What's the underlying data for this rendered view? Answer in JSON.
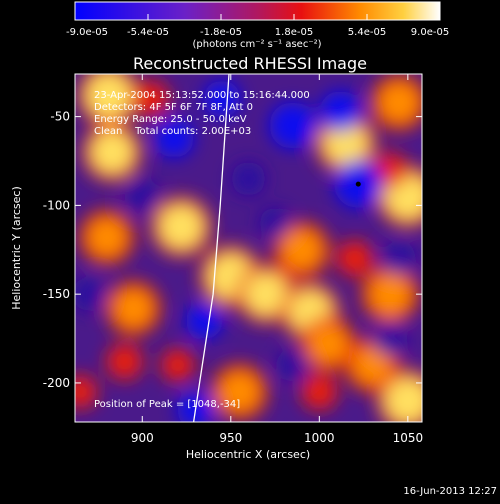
{
  "chart_data": {
    "type": "heatmap",
    "title": "Reconstructed RHESSI Image",
    "xlabel": "Heliocentric X (arcsec)",
    "ylabel": "Heliocentric Y (arcsec)",
    "xlim": [
      862,
      1058
    ],
    "ylim": [
      -222,
      -26
    ],
    "x_ticks": [
      900,
      950,
      1000,
      1050
    ],
    "y_ticks": [
      -50,
      -100,
      -150,
      -200
    ],
    "colorbar": {
      "min": -9e-05,
      "max": 9e-05,
      "tick_labels": [
        "-9.0e-05",
        "-5.4e-05",
        "-1.8e-05",
        "1.8e-05",
        "5.4e-05",
        "9.0e-05"
      ],
      "units_label": "(photons cm⁻² s⁻¹ asec⁻²)",
      "colors": [
        "#0000ff",
        "#5a1fd0",
        "#9a1f99",
        "#e01818",
        "#ff7a00",
        "#ffd040",
        "#ffffff"
      ]
    },
    "annotations": [
      "23-Apr-2004 15:13:52.000 to 15:16:44.000",
      "Detectors: 4F 5F 6F 7F 8F, Att 0",
      "Energy Range: 25.0 - 50.0 keV",
      "Clean    Total counts: 2.00E+03"
    ],
    "peak_label": "Position of Peak = [1048,-34]",
    "peak": [
      1048,
      -34
    ],
    "limb_points": [
      [
        929,
        -222
      ],
      [
        940,
        -150
      ],
      [
        944,
        -100
      ],
      [
        949,
        -26
      ]
    ],
    "blobs": [
      {
        "x": 881,
        "y": -38,
        "v": 0.95
      },
      {
        "x": 905,
        "y": -40,
        "v": 0.6
      },
      {
        "x": 1045,
        "y": -42,
        "v": 0.75
      },
      {
        "x": 1015,
        "y": -65,
        "v": 0.9
      },
      {
        "x": 883,
        "y": -70,
        "v": 0.85
      },
      {
        "x": 1050,
        "y": -95,
        "v": 0.95
      },
      {
        "x": 1040,
        "y": -80,
        "v": 0.55
      },
      {
        "x": 880,
        "y": -118,
        "v": 0.7
      },
      {
        "x": 922,
        "y": -112,
        "v": 0.9
      },
      {
        "x": 990,
        "y": -125,
        "v": 0.75
      },
      {
        "x": 1020,
        "y": -130,
        "v": 0.6
      },
      {
        "x": 950,
        "y": -140,
        "v": 0.95
      },
      {
        "x": 970,
        "y": -150,
        "v": 0.85
      },
      {
        "x": 895,
        "y": -158,
        "v": 0.7
      },
      {
        "x": 995,
        "y": -160,
        "v": 0.85
      },
      {
        "x": 1040,
        "y": -150,
        "v": 0.8
      },
      {
        "x": 1005,
        "y": -178,
        "v": 0.7
      },
      {
        "x": 920,
        "y": -190,
        "v": 0.5
      },
      {
        "x": 890,
        "y": -188,
        "v": 0.6
      },
      {
        "x": 865,
        "y": -205,
        "v": 0.5
      },
      {
        "x": 1050,
        "y": -210,
        "v": 0.95
      },
      {
        "x": 955,
        "y": -205,
        "v": 0.75
      },
      {
        "x": 1000,
        "y": -205,
        "v": 0.6
      },
      {
        "x": 1030,
        "y": -190,
        "v": 0.7
      },
      {
        "x": 1012,
        "y": -47,
        "v": -0.75
      },
      {
        "x": 985,
        "y": -55,
        "v": -0.95
      },
      {
        "x": 945,
        "y": -40,
        "v": -0.6
      },
      {
        "x": 918,
        "y": -62,
        "v": -0.7
      },
      {
        "x": 1022,
        "y": -88,
        "v": -1.0
      },
      {
        "x": 960,
        "y": -85,
        "v": -0.5
      },
      {
        "x": 900,
        "y": -95,
        "v": -0.55
      },
      {
        "x": 870,
        "y": -150,
        "v": -0.5
      },
      {
        "x": 935,
        "y": -165,
        "v": -0.6
      },
      {
        "x": 1045,
        "y": -130,
        "v": -0.5
      },
      {
        "x": 985,
        "y": -190,
        "v": -0.45
      },
      {
        "x": 1040,
        "y": -175,
        "v": -0.55
      },
      {
        "x": 930,
        "y": -215,
        "v": -0.6
      },
      {
        "x": 975,
        "y": -110,
        "v": -0.4
      }
    ]
  },
  "footer": {
    "date": "16-Jun-2013 12:27"
  }
}
